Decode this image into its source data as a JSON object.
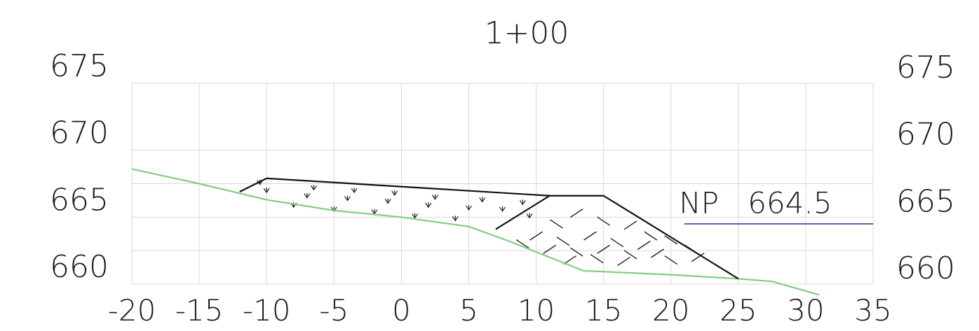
{
  "chart_data": {
    "type": "line",
    "title": "1+00",
    "xlim": [
      -20,
      35
    ],
    "ylim": [
      660,
      675
    ],
    "x_ticks": [
      "-20",
      "-15",
      "-10",
      "-5",
      "0",
      "5",
      "10",
      "15",
      "20",
      "25",
      "30",
      "35"
    ],
    "x_tick_values": [
      -20,
      -15,
      -10,
      -5,
      0,
      5,
      10,
      15,
      20,
      25,
      30,
      35
    ],
    "y_ticks_left": [
      "675",
      "670",
      "665",
      "660"
    ],
    "y_ticks_right": [
      "675",
      "670",
      "665",
      "660"
    ],
    "y_tick_values": [
      675,
      670,
      665,
      660
    ],
    "grid": true,
    "colors": {
      "ground": "#7fd07f",
      "section": "#111111",
      "water": "#4a4aa8",
      "grid": "#d9d9d9"
    },
    "series": [
      {
        "key": "existing_ground",
        "points": [
          [
            -20,
            668.6
          ],
          [
            -15,
            667.5
          ],
          [
            -10,
            666.3
          ],
          [
            -5,
            665.5
          ],
          [
            0,
            665.0
          ],
          [
            5,
            664.3
          ],
          [
            8,
            663.2
          ],
          [
            11,
            662.0
          ],
          [
            13.5,
            661.0
          ],
          [
            20,
            660.7
          ],
          [
            25,
            660.4
          ],
          [
            27.5,
            660.2
          ],
          [
            31,
            659.2
          ]
        ]
      },
      {
        "key": "fill_section",
        "points": [
          [
            -12,
            666.9
          ],
          [
            -10,
            667.9
          ],
          [
            11,
            666.6
          ],
          [
            15,
            666.6
          ],
          [
            25,
            660.4
          ]
        ]
      },
      {
        "key": "benched_face",
        "points": [
          [
            7,
            664.1
          ],
          [
            11,
            666.6
          ]
        ]
      },
      {
        "key": "normal_pool",
        "points": [
          [
            21,
            664.5
          ],
          [
            35,
            664.5
          ]
        ]
      }
    ],
    "annotations": [
      {
        "text": "NP",
        "x": 20.6,
        "y": 665.0
      },
      {
        "text": "664.5",
        "x": 25.7,
        "y": 665.0
      }
    ]
  }
}
